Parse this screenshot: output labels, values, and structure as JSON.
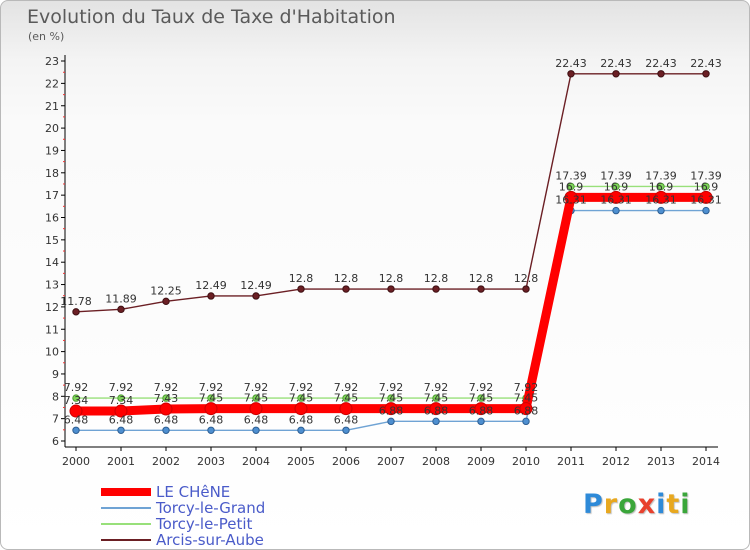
{
  "title": "Evolution du Taux de Taxe d'Habitation",
  "unit_label": "(en %)",
  "logo": {
    "text": "Proxiti",
    "colors": [
      "#2e8ad8",
      "#e8a81f",
      "#3aa63a",
      "#e8412e",
      "#2e8ad8",
      "#e8a81f",
      "#3aa63a"
    ]
  },
  "chart_data": {
    "type": "line",
    "x": [
      "2000",
      "2001",
      "2002",
      "2003",
      "2004",
      "2005",
      "2006",
      "2007",
      "2008",
      "2009",
      "2010",
      "2011",
      "2012",
      "2013",
      "2014"
    ],
    "ylim": [
      6,
      23
    ],
    "yticks": [
      6,
      7,
      8,
      9,
      10,
      11,
      12,
      13,
      14,
      15,
      16,
      17,
      18,
      19,
      20,
      21,
      22,
      23
    ],
    "grid": false,
    "legend_position": "bottom-left",
    "series": [
      {
        "name": "Arcis-sur-Aube",
        "color": "#6b1f24",
        "values": [
          11.78,
          11.89,
          12.25,
          12.49,
          12.49,
          12.8,
          12.8,
          12.8,
          12.8,
          12.8,
          12.8,
          22.43,
          22.43,
          22.43,
          22.43
        ],
        "labels": [
          "11.78",
          "11.89",
          "12.25",
          "12.49",
          "12.49",
          "12.8",
          "12.8",
          "12.8",
          "12.8",
          "12.8",
          "12.8",
          "22.43",
          "22.43",
          "22.43",
          "22.43"
        ]
      },
      {
        "name": "Torcy-le-Petit",
        "color": "#98e07a",
        "values": [
          7.92,
          7.92,
          7.92,
          7.92,
          7.92,
          7.92,
          7.92,
          7.92,
          7.92,
          7.92,
          7.92,
          17.39,
          17.39,
          17.39,
          17.39
        ],
        "labels": [
          "7.92",
          "7.92",
          "7.92",
          "7.92",
          "7.92",
          "7.92",
          "7.92",
          "7.92",
          "7.92",
          "7.92",
          "7.92",
          "17.39",
          "17.39",
          "17.39",
          "17.39"
        ]
      },
      {
        "name": "LE CHêNE",
        "color": "#ff0000",
        "values": [
          7.34,
          7.34,
          7.43,
          7.45,
          7.45,
          7.45,
          7.45,
          7.45,
          7.45,
          7.45,
          7.45,
          16.9,
          16.9,
          16.9,
          16.9
        ],
        "labels": [
          "7.34",
          "7.34",
          "7.43",
          "7.45",
          "7.45",
          "7.45",
          "7.45",
          "7.45",
          "7.45",
          "7.45",
          "7.45",
          "16.9",
          "16.9",
          "16.9",
          "16.9"
        ]
      },
      {
        "name": "Torcy-le-Grand",
        "color": "#6fa3d4",
        "values": [
          6.48,
          6.48,
          6.48,
          6.48,
          6.48,
          6.48,
          6.48,
          6.88,
          6.88,
          6.88,
          6.88,
          16.31,
          16.31,
          16.31,
          16.31
        ],
        "labels": [
          "6.48",
          "6.48",
          "6.48",
          "6.48",
          "6.48",
          "6.48",
          "6.48",
          "6.88",
          "6.88",
          "6.88",
          "6.88",
          "16.31",
          "16.31",
          "16.31",
          "16.31"
        ]
      }
    ],
    "legend": [
      "LE CHêNE",
      "Torcy-le-Grand",
      "Torcy-le-Petit",
      "Arcis-sur-Aube"
    ]
  }
}
